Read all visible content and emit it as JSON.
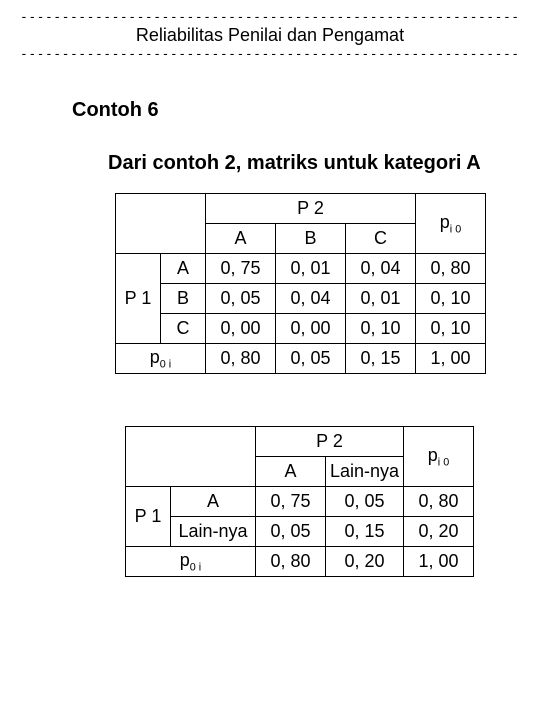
{
  "header": {
    "title": "Reliabilitas Penilai dan Pengamat"
  },
  "heading": "Contoh 6",
  "subheading": "Dari contoh 2, matriks untuk kategori A",
  "table1": {
    "p2": "P 2",
    "pi0_html": "p<span class=\"sub\">i 0</span>",
    "p1": "P 1",
    "p0i_html": "p<span class=\"sub\">0 i</span>",
    "colA": "A",
    "colB": "B",
    "colC": "C",
    "rowA": "A",
    "rowB": "B",
    "rowC": "C",
    "r1": [
      "0, 75",
      "0, 01",
      "0, 04",
      "0, 80"
    ],
    "r2": [
      "0, 05",
      "0, 04",
      "0, 01",
      "0, 10"
    ],
    "r3": [
      "0, 00",
      "0, 00",
      "0, 10",
      "0, 10"
    ],
    "r4": [
      "0, 80",
      "0, 05",
      "0, 15",
      "1, 00"
    ]
  },
  "table2": {
    "p2": "P 2",
    "pi0_html": "p<span class=\"sub\">i 0</span>",
    "p1": "P 1",
    "p0i_html": "p<span class=\"sub\">0 i</span>",
    "colA": "A",
    "colB": "Lain-nya",
    "rowA": "A",
    "rowB": "Lain-nya",
    "r1": [
      "0, 75",
      "0, 05",
      "0, 80"
    ],
    "r2": [
      "0, 05",
      "0, 15",
      "0, 20"
    ],
    "r3": [
      "0, 80",
      "0, 20",
      "1, 00"
    ]
  }
}
